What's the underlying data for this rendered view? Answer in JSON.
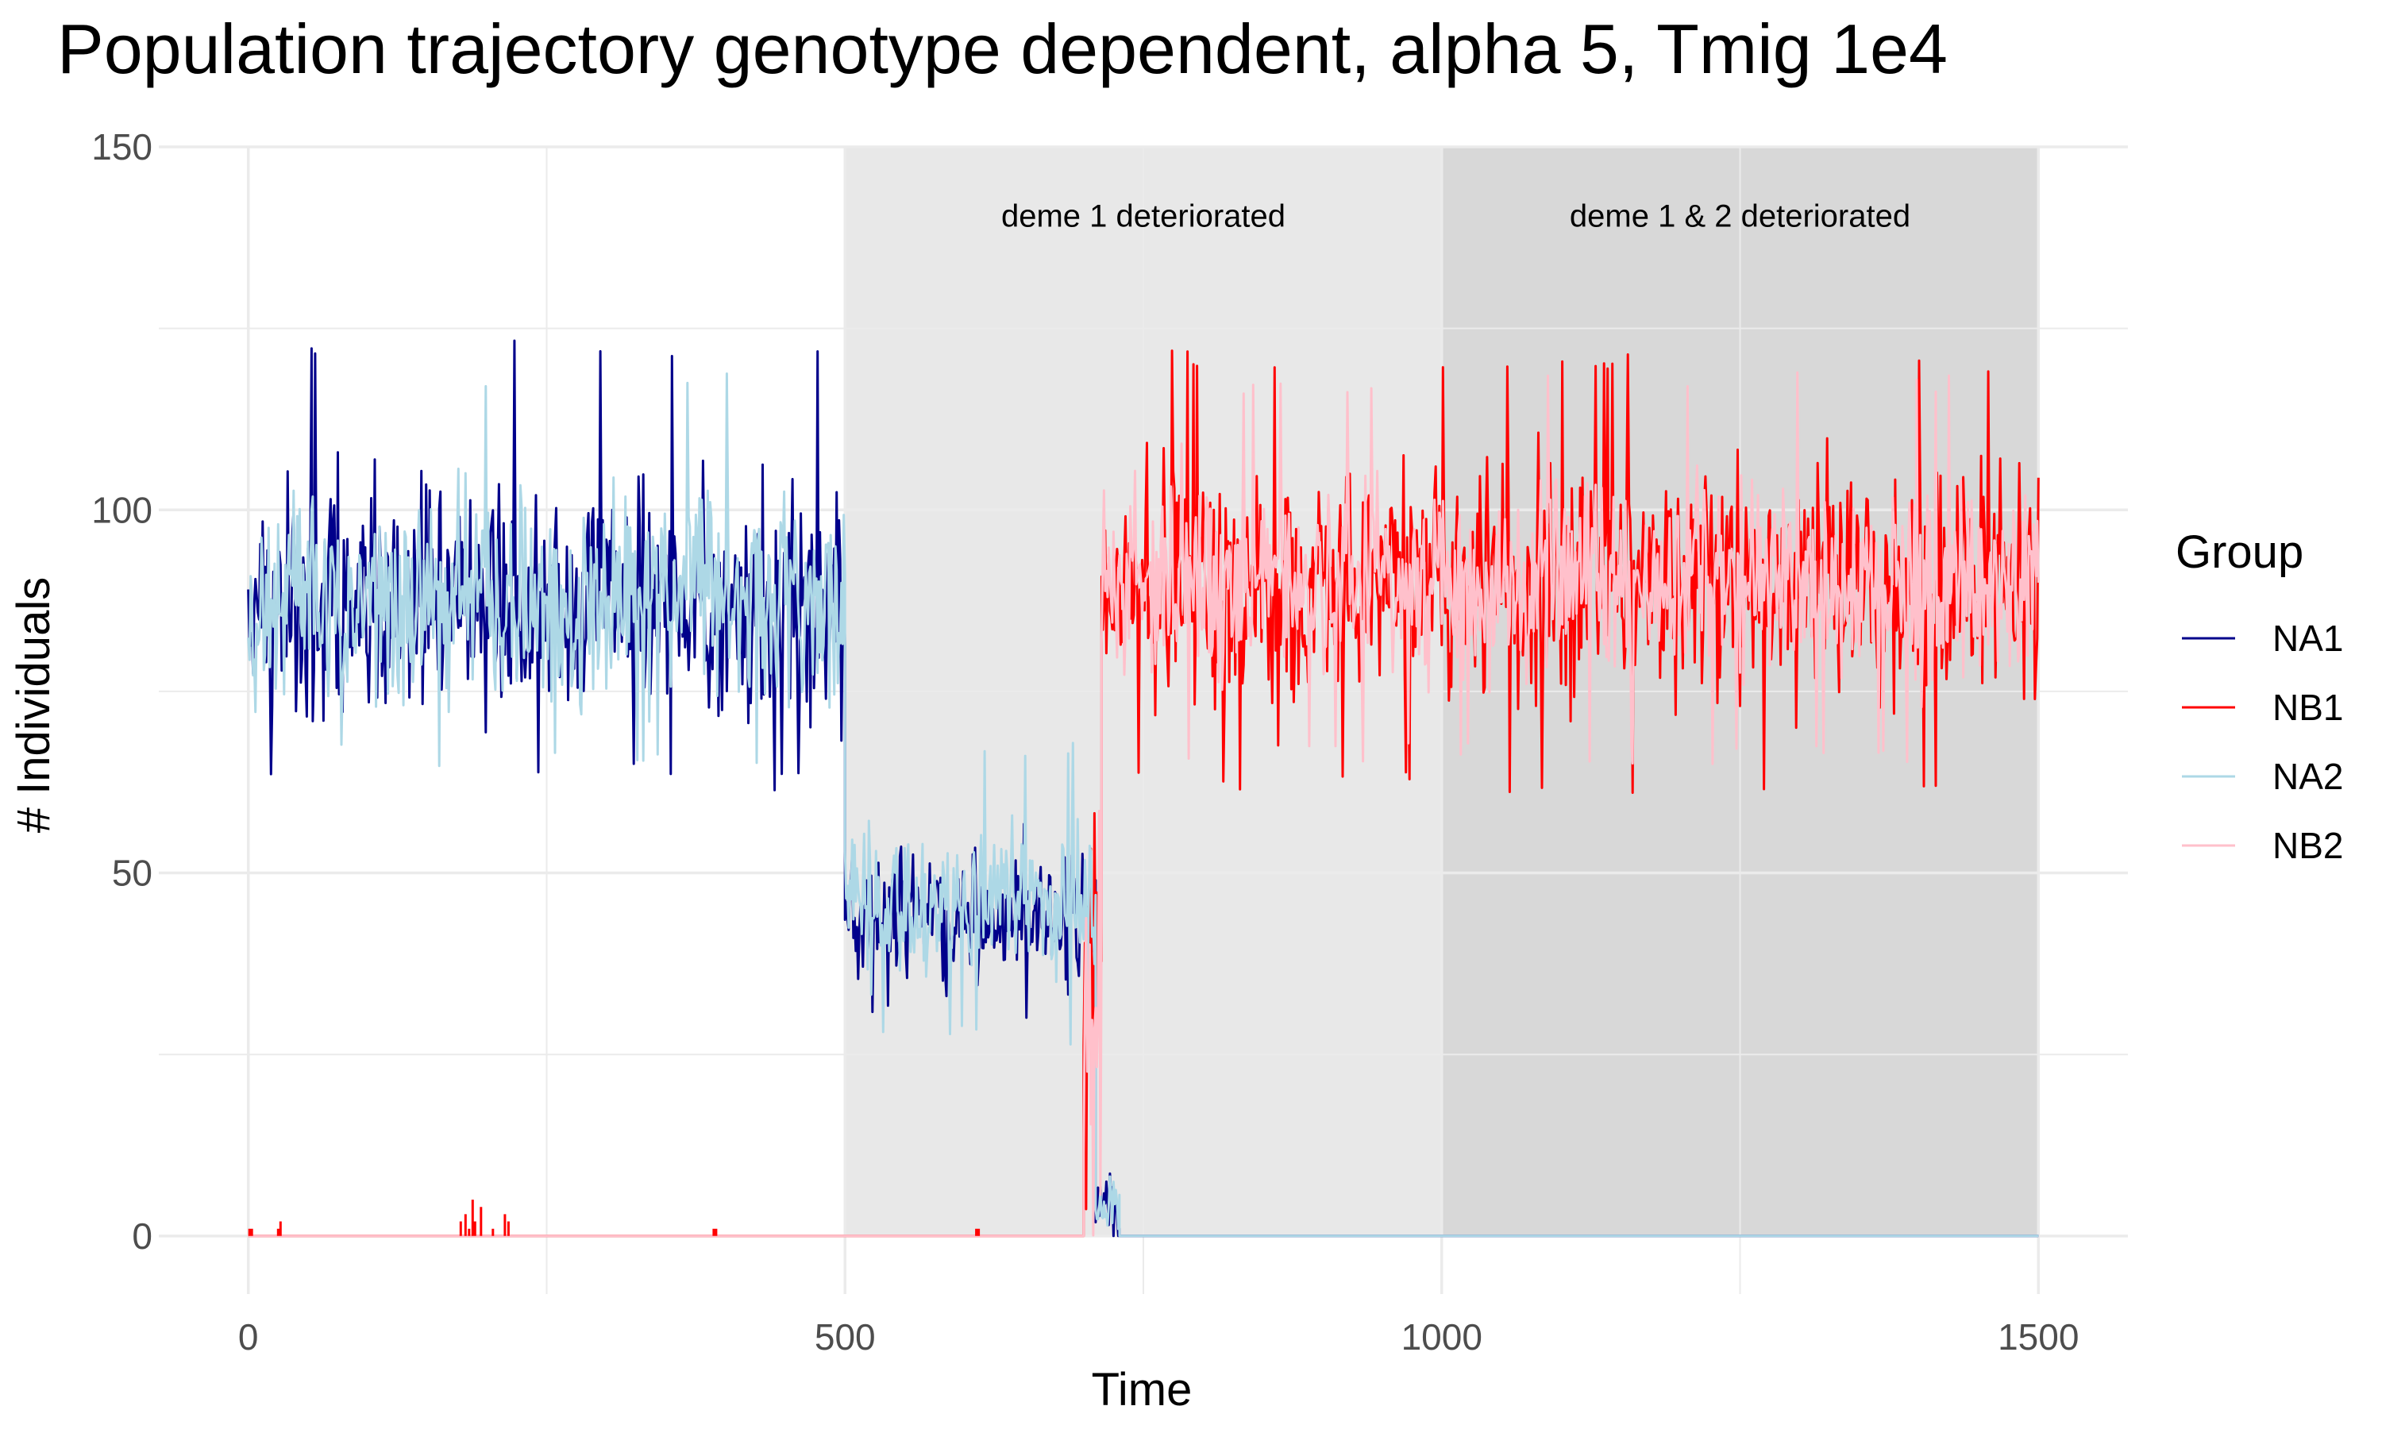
{
  "chart_data": {
    "type": "line",
    "title": "Population trajectory genotype dependent, alpha 5, Tmig 1e4",
    "xlabel": "Time",
    "ylabel": "# Individuals",
    "xlim": [
      -75,
      1575
    ],
    "ylim": [
      -8,
      150
    ],
    "x_ticks": [
      0,
      500,
      1000,
      1500
    ],
    "y_ticks": [
      0,
      50,
      100,
      150
    ],
    "x_tick_labels": [
      "0",
      "500",
      "1000",
      "1500"
    ],
    "y_tick_labels": [
      "0",
      "50",
      "100",
      "150"
    ],
    "grid": true,
    "background": "#ffffff",
    "grid_color": "#ebebeb",
    "shaded_regions": [
      {
        "x": [
          500,
          1000
        ],
        "color": "#e8e8e8",
        "label": "deme 1 deteriorated"
      },
      {
        "x": [
          1000,
          1500
        ],
        "color": "#d8d8d8",
        "label": "deme 1 & 2 deteriorated"
      }
    ],
    "legend": {
      "title": "Group",
      "position": "right"
    },
    "series": [
      {
        "name": "NA1",
        "color": "#00008b",
        "segments": [
          {
            "x": [
              0,
              500
            ],
            "mean": 87,
            "amp": 11,
            "min": 61,
            "max": 124
          },
          {
            "x": [
              500,
              710
            ],
            "mean": 44,
            "amp": 7,
            "min": 29,
            "max": 60
          },
          {
            "x": [
              710,
              730
            ],
            "mean": 4,
            "amp": 3,
            "min": 0,
            "max": 25
          },
          {
            "x": [
              730,
              1500
            ],
            "mean": 0,
            "amp": 0,
            "min": 0,
            "max": 0
          }
        ]
      },
      {
        "name": "NB1",
        "color": "#ff0000",
        "segments": [
          {
            "x": [
              0,
              700
            ],
            "mean": 0,
            "amp": 0,
            "min": 0,
            "max": 5
          },
          {
            "x": [
              700,
              715
            ],
            "mean": 30,
            "amp": 20,
            "min": 0,
            "max": 80
          },
          {
            "x": [
              715,
              1500
            ],
            "mean": 90,
            "amp": 11,
            "min": 61,
            "max": 122
          }
        ]
      },
      {
        "name": "NA2",
        "color": "#add8e6",
        "segments": [
          {
            "x": [
              0,
              500
            ],
            "mean": 88,
            "amp": 10,
            "min": 64,
            "max": 119
          },
          {
            "x": [
              500,
              710
            ],
            "mean": 46,
            "amp": 7,
            "min": 26,
            "max": 68
          },
          {
            "x": [
              710,
              730
            ],
            "mean": 4,
            "amp": 3,
            "min": 0,
            "max": 20
          },
          {
            "x": [
              730,
              1500
            ],
            "mean": 0,
            "amp": 0,
            "min": 0,
            "max": 0
          }
        ]
      },
      {
        "name": "NB2",
        "color": "#ffc0cb",
        "segments": [
          {
            "x": [
              0,
              700
            ],
            "mean": 0,
            "amp": 0,
            "min": 0,
            "max": 0
          },
          {
            "x": [
              700,
              715
            ],
            "mean": 30,
            "amp": 20,
            "min": 0,
            "max": 80
          },
          {
            "x": [
              715,
              1500
            ],
            "mean": 90,
            "amp": 9,
            "min": 65,
            "max": 119
          }
        ]
      }
    ],
    "small_blips": [
      {
        "series": "NB1",
        "x": [
          1,
          3,
          25,
          27
        ],
        "values": [
          1,
          1,
          1,
          2
        ]
      },
      {
        "series": "NB1",
        "x": [
          178,
          182,
          185,
          188,
          190,
          195,
          205,
          215,
          218
        ],
        "values": [
          2,
          3,
          1,
          5,
          2,
          4,
          1,
          3,
          2
        ]
      },
      {
        "series": "NB1",
        "x": [
          390,
          392
        ],
        "values": [
          1,
          1
        ]
      },
      {
        "series": "NB1",
        "x": [
          610,
          612
        ],
        "values": [
          1,
          1
        ]
      }
    ]
  }
}
